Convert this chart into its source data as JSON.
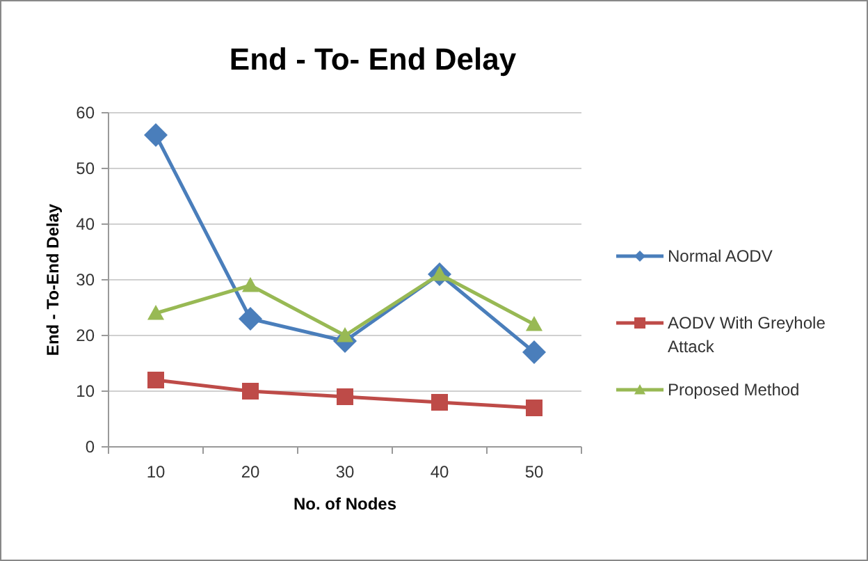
{
  "chart_data": {
    "type": "line",
    "title": "End - To- End Delay",
    "xlabel": "No. of Nodes",
    "ylabel": "End - To-End Delay",
    "categories": [
      "10",
      "20",
      "30",
      "40",
      "50"
    ],
    "series": [
      {
        "name": "Normal AODV",
        "color": "#4a7ebb",
        "marker": "diamond",
        "values": [
          56,
          23,
          19,
          31,
          17
        ]
      },
      {
        "name": "AODV With Greyhole Attack",
        "color": "#be4b48",
        "marker": "square",
        "values": [
          12,
          10,
          9,
          8,
          7
        ]
      },
      {
        "name": "Proposed Method",
        "color": "#98b954",
        "marker": "triangle",
        "values": [
          24,
          29,
          20,
          31,
          22
        ]
      }
    ],
    "ylim": [
      0,
      60
    ],
    "yticks": [
      0,
      10,
      20,
      30,
      40,
      50,
      60
    ],
    "grid": "y",
    "legend": "right"
  }
}
